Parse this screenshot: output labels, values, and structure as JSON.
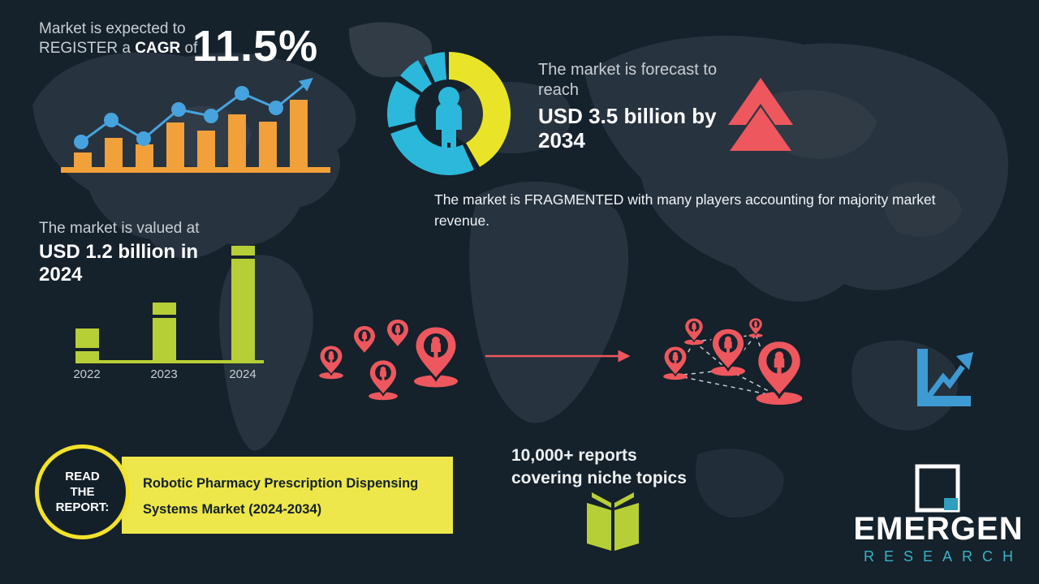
{
  "colors": {
    "background": "#15212B",
    "map_mid": "#27333F",
    "map_gray": "#39444E",
    "orange": "#F1A03A",
    "line_blue": "#47A3DE",
    "teal": "#2BB8DA",
    "donut_yellow": "#E9E427",
    "lime": "#B7CF36",
    "banner_yellow": "#EDE74B",
    "ring_yellow": "#F2E22C",
    "red": "#EE575D",
    "text_gray": "#C9CED2",
    "logo_teal": "#38B2C7"
  },
  "cagr": {
    "line1": "Market is expected to",
    "line2_prefix": "REGISTER a ",
    "line2_bold": "CAGR",
    "line2_suffix": " of",
    "value": "11.5%"
  },
  "forecast": {
    "intro": "The market is forecast to reach",
    "value": "USD 3.5 billion by 2034"
  },
  "fragmented_note": "The market is FRAGMENTED with many players accounting for majority market revenue.",
  "valuation": {
    "intro": "The market is valued at",
    "value": "USD 1.2 billion in 2024"
  },
  "reports": {
    "line1": "10,000+ reports",
    "line2": "covering niche topics"
  },
  "cta": {
    "circle_line1": "READ",
    "circle_line2": "THE",
    "circle_line3": "REPORT:",
    "banner_line1": "Robotic Pharmacy Prescription Dispensing",
    "banner_line2": "Systems Market (2024-2034)"
  },
  "logo": {
    "title": "EMERGEN",
    "subtitle": "RESEARCH"
  },
  "icons": [
    "growth-line-arrow-icon",
    "double-up-arrow-icon",
    "person-icon",
    "location-pin-person-icon",
    "flow-arrow-icon",
    "open-book-icon",
    "chart-up-arrow-icon",
    "emergen-logo-icon",
    "world-map-background"
  ],
  "chart_data": [
    {
      "id": "cagr-growth-chart",
      "type": "bar",
      "note": "decorative combo bar+line growth chart, no axis labels; values are relative pixel heights",
      "bar_values_rel": [
        18,
        36,
        28,
        55,
        45,
        65,
        56,
        83
      ],
      "line_points_rel": [
        [
          25,
          79
        ],
        [
          62,
          52
        ],
        [
          102,
          75
        ],
        [
          145,
          39
        ],
        [
          185,
          47
        ],
        [
          223,
          19
        ],
        [
          265,
          37
        ]
      ],
      "arrow_end_rel": [
        307,
        3
      ],
      "bar_color": "#F1A03A",
      "line_color": "#47A3DE"
    },
    {
      "id": "market-value-chart",
      "type": "bar",
      "categories": [
        "2022",
        "2023",
        "2024"
      ],
      "values_rel": [
        39,
        71,
        141
      ],
      "known_point": {
        "year": "2024",
        "value_usd_billion": 1.2
      },
      "bar_color": "#B7CF36",
      "bar_lefts": [
        0,
        95,
        192
      ],
      "stripe_offsets": [
        24,
        15,
        12
      ]
    },
    {
      "id": "population-donut",
      "type": "pie",
      "note": "decorative donut around person icon; degrees clockwise from 12 o'clock",
      "segments": [
        {
          "name": "yellow",
          "start_deg": 0,
          "end_deg": 150,
          "color": "#E9E427",
          "approx_share": 0.41
        },
        {
          "name": "teal-1",
          "start_deg": 156,
          "end_deg": 251,
          "color": "#2BB8DA",
          "approx_share": 0.26
        },
        {
          "name": "teal-2",
          "start_deg": 257,
          "end_deg": 302,
          "color": "#2BB8DA",
          "approx_share": 0.13
        },
        {
          "name": "teal-3",
          "start_deg": 308,
          "end_deg": 330,
          "color": "#2BB8DA",
          "approx_share": 0.06
        },
        {
          "name": "teal-4",
          "start_deg": 336,
          "end_deg": 356,
          "color": "#2BB8DA",
          "approx_share": 0.06
        }
      ],
      "center_icon": "person-icon"
    }
  ]
}
